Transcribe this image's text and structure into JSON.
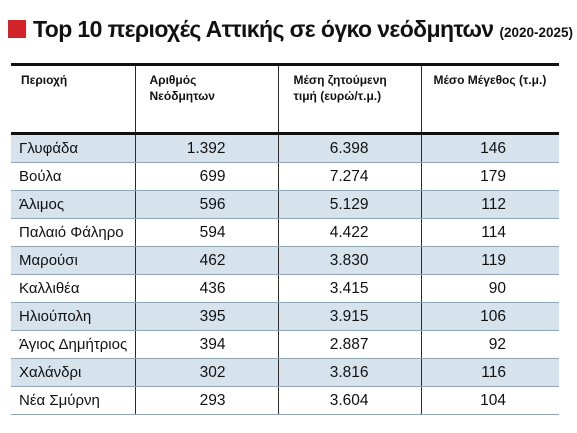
{
  "header": {
    "title": "Top 10 περιοχές Αττικής σε όγκο νεόδμητων",
    "period": "(2020-2025)",
    "accent_color": "#d2232a"
  },
  "chart_data": {
    "type": "table",
    "title": "Top 10 περιοχές Αττικής σε όγκο νεόδμητων (2020-2025)",
    "columns": [
      {
        "label_lines": [
          "Περιοχή"
        ]
      },
      {
        "label_lines": [
          "Αριθμός",
          "Νεόδμητων"
        ]
      },
      {
        "label_lines": [
          "Μέση ζητούμενη",
          "τιμή (ευρώ/τ.μ.)"
        ]
      },
      {
        "label_lines": [
          "Μέσο Μέγεθος (τ.μ.)"
        ]
      }
    ],
    "rows": [
      [
        "Γλυφάδα",
        "1.392",
        "6.398",
        "146"
      ],
      [
        "Βούλα",
        "699",
        "7.274",
        "179"
      ],
      [
        "Άλιμος",
        "596",
        "5.129",
        "112"
      ],
      [
        "Παλαιό Φάληρο",
        "594",
        "4.422",
        "114"
      ],
      [
        "Μαρούσι",
        "462",
        "3.830",
        "119"
      ],
      [
        "Καλλιθέα",
        "436",
        "3.415",
        "90"
      ],
      [
        "Ηλιούπολη",
        "395",
        "3.915",
        "106"
      ],
      [
        "Άγιος Δημήτριος",
        "394",
        "2.887",
        "92"
      ],
      [
        "Χαλάνδρι",
        "302",
        "3.816",
        "116"
      ],
      [
        "Νέα Σμύρνη",
        "293",
        "3.604",
        "104"
      ]
    ],
    "row_band_color": "#d6e3ed"
  }
}
